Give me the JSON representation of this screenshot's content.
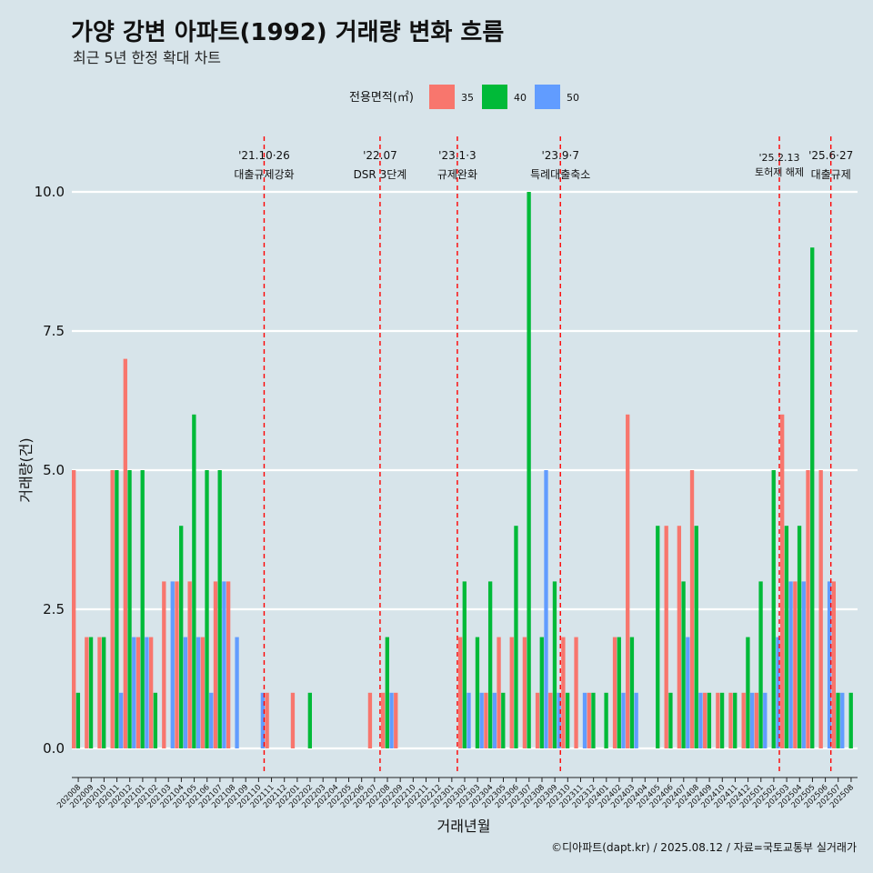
{
  "header": {
    "title": "가양 강변 아파트(1992) 거래량 변화 흐름",
    "subtitle": "최근 5년 한정 확대 차트"
  },
  "legend": {
    "title": "전용면적(㎡)",
    "items": [
      {
        "label": "35",
        "color": "#f8766d"
      },
      {
        "label": "40",
        "color": "#00ba38"
      },
      {
        "label": "50",
        "color": "#619cff"
      }
    ]
  },
  "caption": "©디아파트(dapt.kr) / 2025.08.12 / 자료=국토교통부 실거래가",
  "chart_data": {
    "type": "bar",
    "xlabel": "거래년월",
    "ylabel": "거래량(건)",
    "ylim": [
      0,
      10
    ],
    "yticks": [
      "0.0",
      "2.5",
      "5.0",
      "7.5",
      "10.0"
    ],
    "grid": "horizontal",
    "legend_position": "top",
    "categories": [
      "202008",
      "202009",
      "202010",
      "202011",
      "202012",
      "202101",
      "202102",
      "202103",
      "202104",
      "202105",
      "202106",
      "202107",
      "202108",
      "202109",
      "202110",
      "202111",
      "202112",
      "202201",
      "202202",
      "202203",
      "202204",
      "202205",
      "202206",
      "202207",
      "202208",
      "202209",
      "202210",
      "202211",
      "202212",
      "202301",
      "202302",
      "202303",
      "202304",
      "202305",
      "202306",
      "202307",
      "202308",
      "202309",
      "202310",
      "202311",
      "202312",
      "202401",
      "202402",
      "202403",
      "202404",
      "202405",
      "202406",
      "202407",
      "202408",
      "202409",
      "202410",
      "202411",
      "202412",
      "202501",
      "202502",
      "202503",
      "202504",
      "202505",
      "202506",
      "202507",
      "202508"
    ],
    "series": [
      {
        "name": "35",
        "color": "#f8766d",
        "values": [
          5,
          2,
          2,
          5,
          7,
          2,
          2,
          3,
          3,
          3,
          2,
          3,
          3,
          0,
          0,
          1,
          0,
          1,
          0,
          0,
          0,
          0,
          0,
          1,
          1,
          1,
          0,
          0,
          0,
          0,
          2,
          0,
          1,
          2,
          2,
          2,
          1,
          1,
          2,
          2,
          1,
          0,
          2,
          6,
          0,
          0,
          4,
          4,
          5,
          1,
          1,
          1,
          1,
          1,
          0,
          6,
          3,
          5,
          5,
          3,
          0
        ]
      },
      {
        "name": "40",
        "color": "#00ba38",
        "values": [
          1,
          2,
          2,
          5,
          5,
          5,
          1,
          0,
          4,
          6,
          5,
          5,
          0,
          0,
          0,
          0,
          0,
          0,
          1,
          0,
          0,
          0,
          0,
          0,
          2,
          0,
          0,
          0,
          0,
          0,
          3,
          2,
          3,
          1,
          4,
          10,
          2,
          3,
          1,
          0,
          1,
          1,
          2,
          2,
          0,
          4,
          1,
          3,
          4,
          1,
          1,
          1,
          2,
          3,
          5,
          4,
          4,
          9,
          0,
          1,
          1
        ]
      },
      {
        "name": "50",
        "color": "#619cff",
        "values": [
          0,
          0,
          0,
          1,
          2,
          2,
          0,
          3,
          2,
          2,
          1,
          3,
          2,
          0,
          1,
          0,
          0,
          0,
          0,
          0,
          0,
          0,
          0,
          0,
          1,
          0,
          0,
          0,
          0,
          0,
          1,
          1,
          1,
          0,
          0,
          0,
          5,
          1,
          0,
          1,
          0,
          0,
          1,
          1,
          0,
          0,
          0,
          2,
          1,
          0,
          0,
          0,
          1,
          1,
          2,
          3,
          3,
          0,
          3,
          1,
          0
        ]
      }
    ],
    "annotations": [
      {
        "date_line1": "'21.10·26",
        "date_line2": "대출규제강화",
        "after_index": 14
      },
      {
        "date_line1": "'22.07",
        "date_line2": "DSR 3단계",
        "after_index": 23
      },
      {
        "date_line1": "'23.1·3",
        "date_line2": "규제완화",
        "after_index": 29
      },
      {
        "date_line1": "'23.9·7",
        "date_line2": "특례대출축소",
        "after_index": 37
      },
      {
        "date_line1": "'25.2.13",
        "date_line2": "토허제 해제",
        "after_index": 54
      },
      {
        "date_line1": "'25.6·27",
        "date_line2": "대출규제",
        "after_index": 58
      }
    ]
  }
}
